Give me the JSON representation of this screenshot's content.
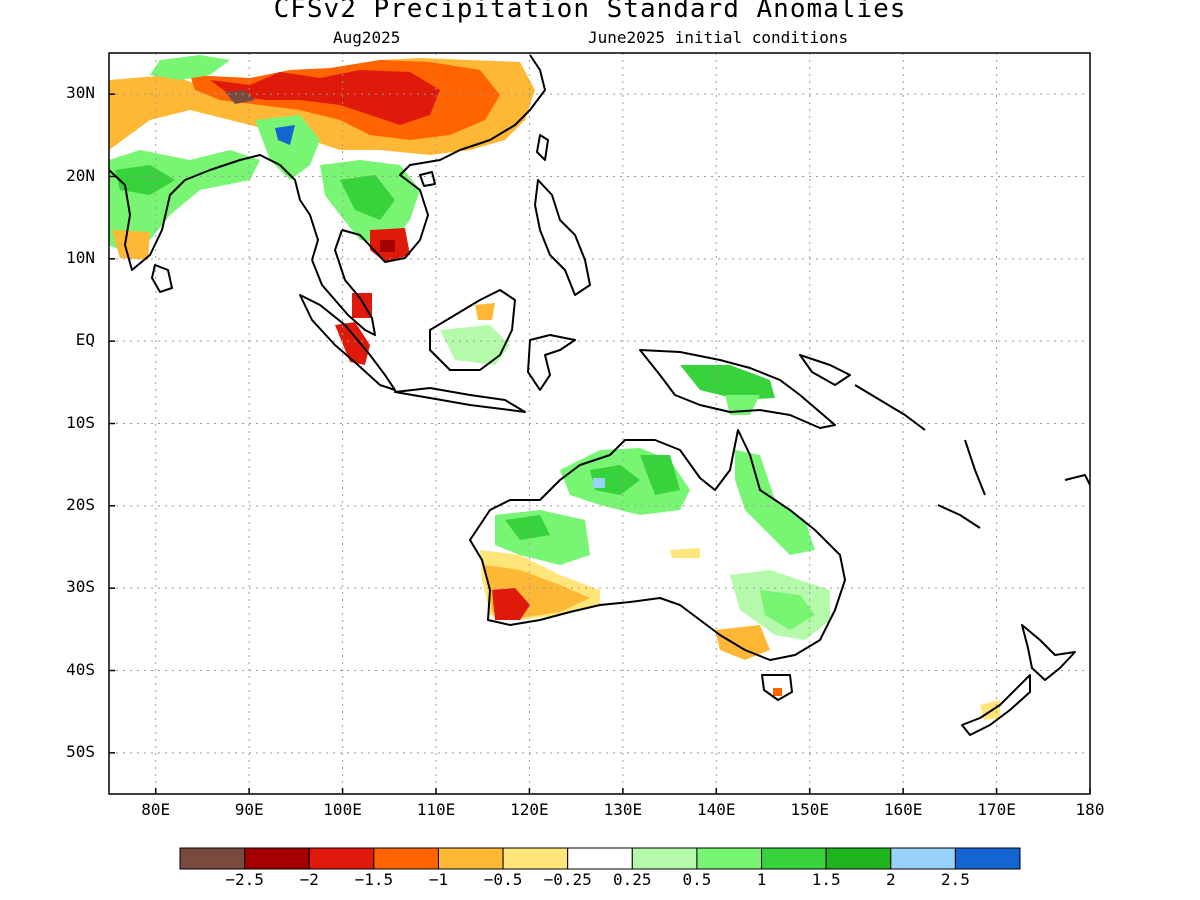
{
  "header": {
    "title": "CFSv2 Precipitation Standard Anomalies",
    "valid_month": "Aug2025",
    "initial_conditions": "June2025 initial conditions"
  },
  "map": {
    "lon_range": [
      75,
      180
    ],
    "lat_range": [
      -55,
      35
    ],
    "lat_ticks": [
      {
        "value": 30,
        "label": "30N"
      },
      {
        "value": 20,
        "label": "20N"
      },
      {
        "value": 10,
        "label": "10N"
      },
      {
        "value": 0,
        "label": "EQ"
      },
      {
        "value": -10,
        "label": "10S"
      },
      {
        "value": -20,
        "label": "20S"
      },
      {
        "value": -30,
        "label": "30S"
      },
      {
        "value": -40,
        "label": "40S"
      },
      {
        "value": -50,
        "label": "50S"
      }
    ],
    "lon_ticks": [
      {
        "value": 80,
        "label": "80E"
      },
      {
        "value": 90,
        "label": "90E"
      },
      {
        "value": 100,
        "label": "100E"
      },
      {
        "value": 110,
        "label": "110E"
      },
      {
        "value": 120,
        "label": "120E"
      },
      {
        "value": 130,
        "label": "130E"
      },
      {
        "value": 140,
        "label": "140E"
      },
      {
        "value": 150,
        "label": "150E"
      },
      {
        "value": 160,
        "label": "160E"
      },
      {
        "value": 170,
        "label": "170E"
      },
      {
        "value": 180,
        "label": "180"
      }
    ],
    "grid": true
  },
  "legend": {
    "colors": [
      "#7a4a3e",
      "#a50000",
      "#e01a0a",
      "#ff6400",
      "#ffb835",
      "#ffe57a",
      "#ffffff",
      "#b4faaa",
      "#78f573",
      "#37d23c",
      "#1eb41e",
      "#96d2fa",
      "#1464d2"
    ],
    "labels": [
      "−2.5",
      "−2",
      "−1.5",
      "−1",
      "−0.5",
      "−0.25",
      "0.25",
      "0.5",
      "1",
      "1.5",
      "2",
      "2.5"
    ]
  }
}
